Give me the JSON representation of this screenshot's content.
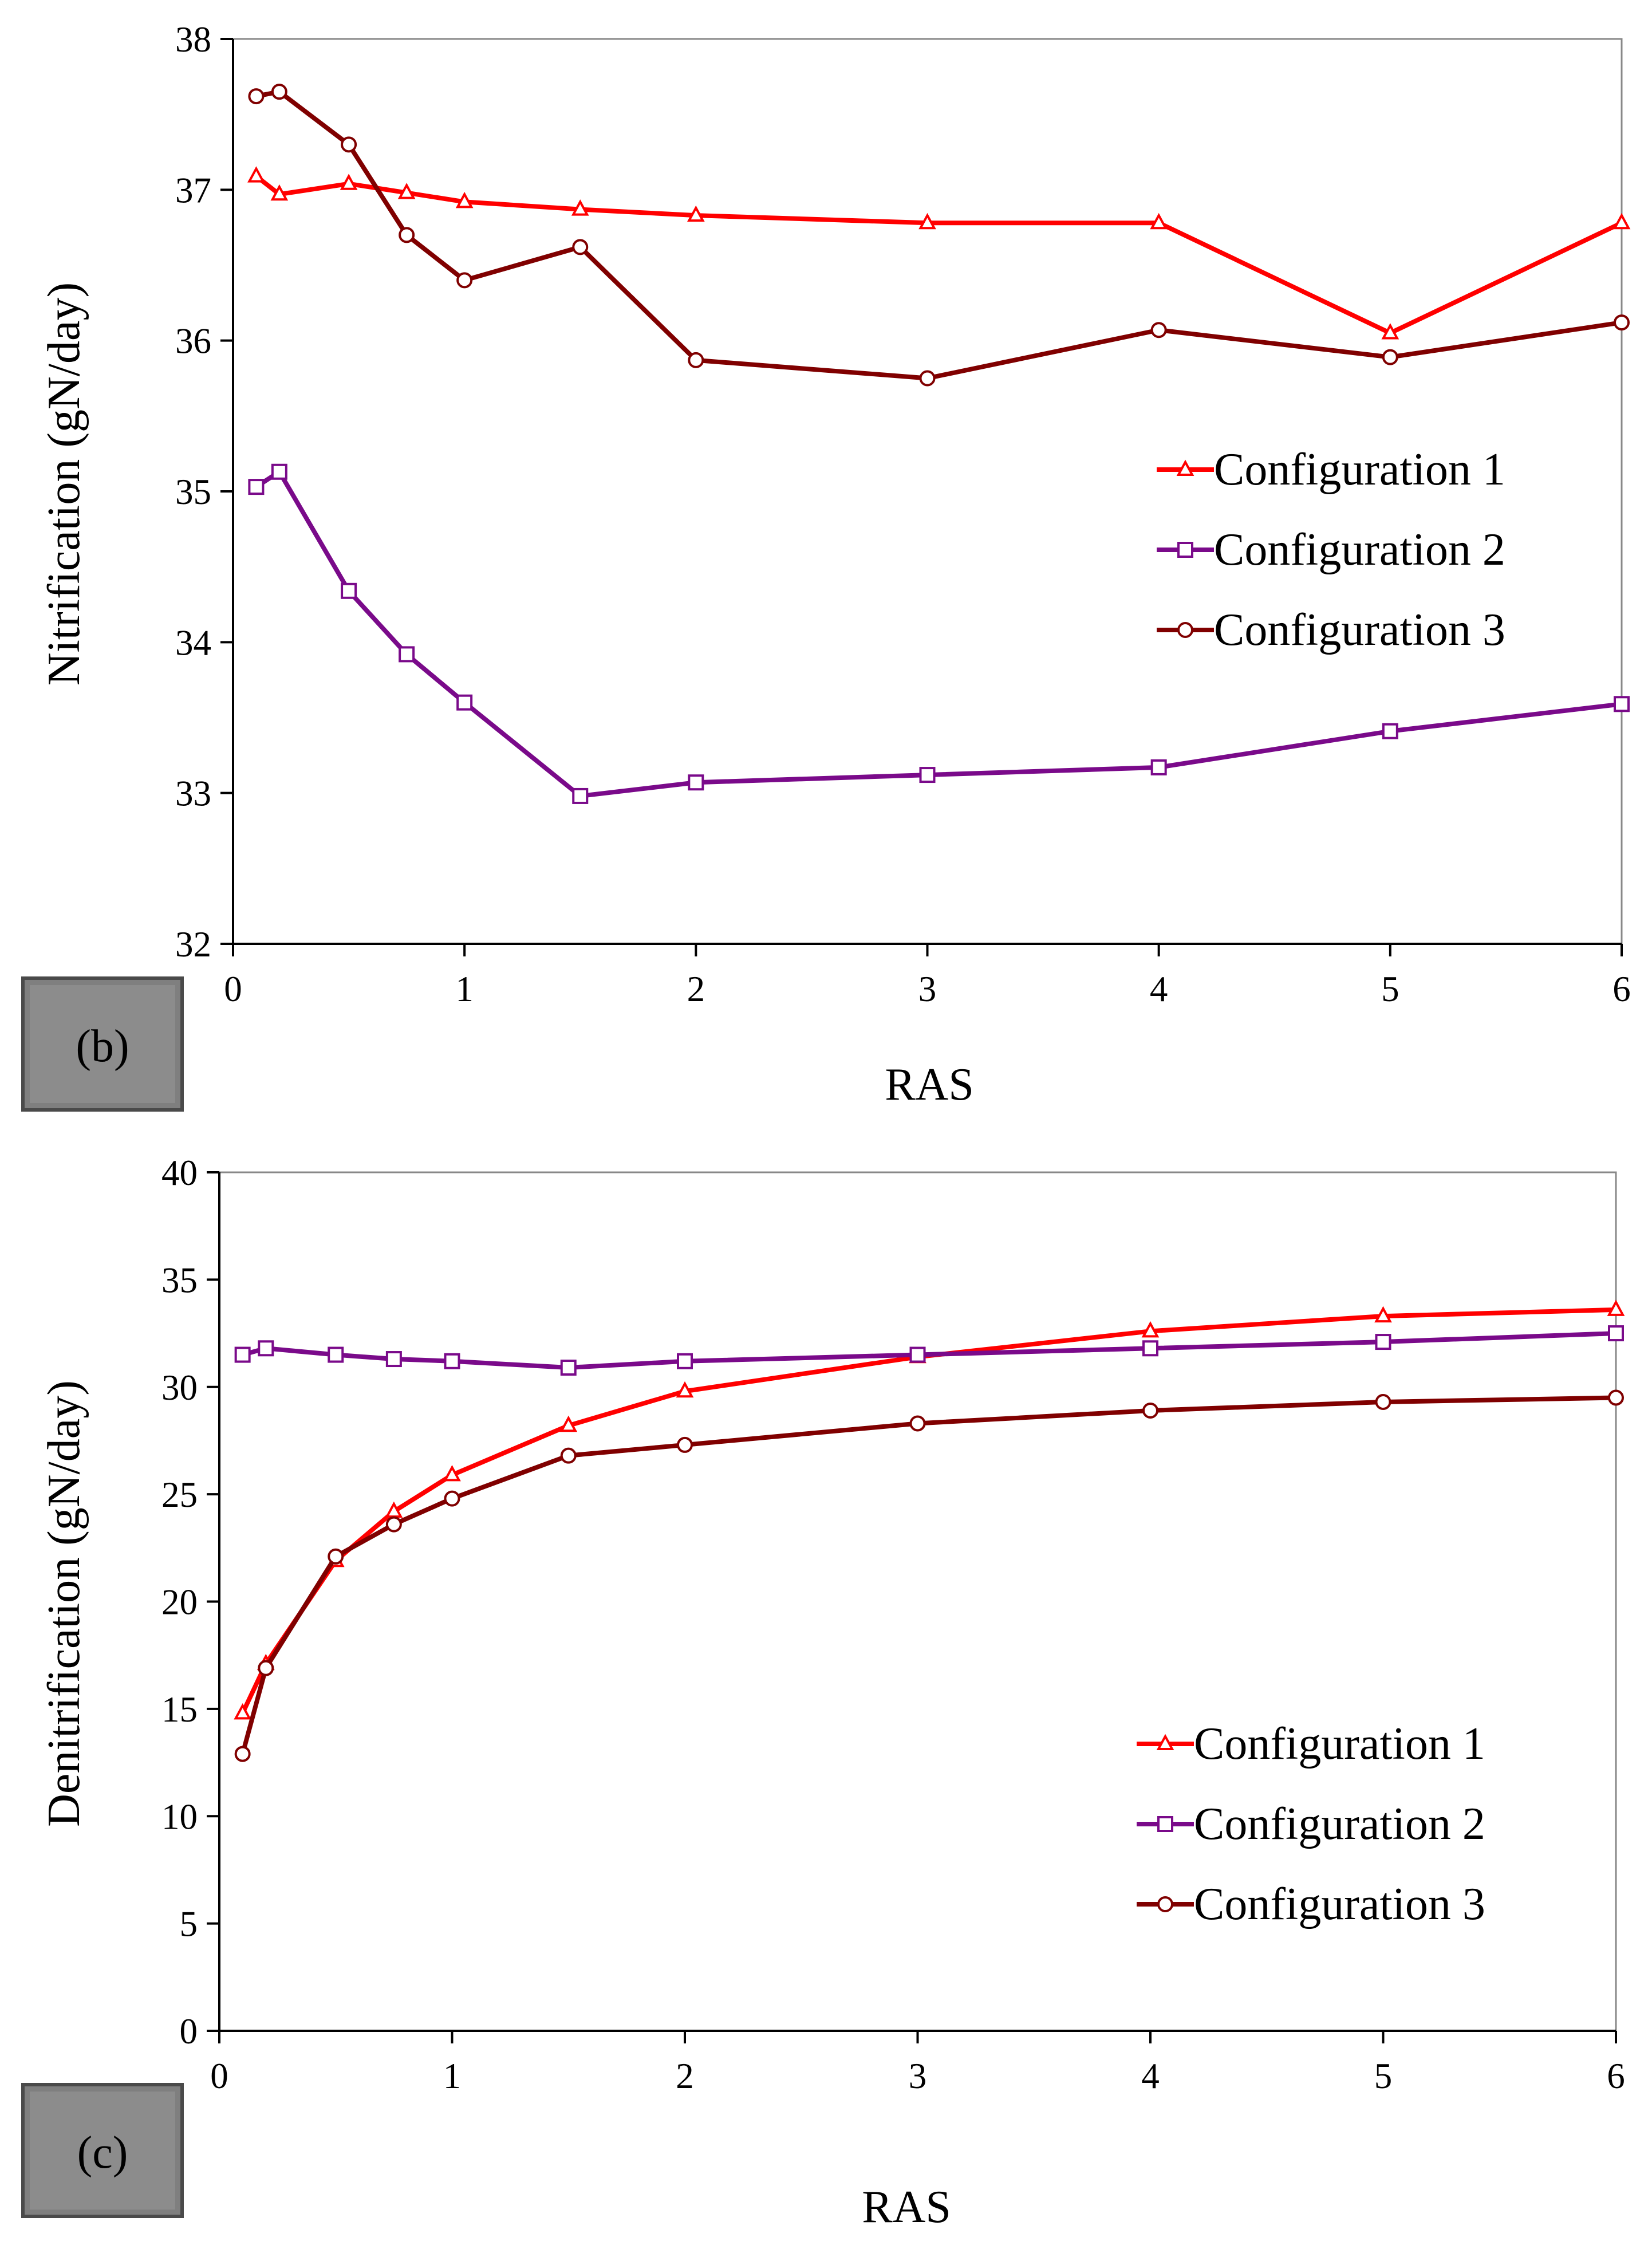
{
  "chart_data": [
    {
      "type": "line",
      "panel_label": "(b)",
      "xlabel": "RAS",
      "ylabel": "Nitrification (gN/day)",
      "xlim": [
        0,
        6
      ],
      "ylim": [
        32,
        38
      ],
      "x_ticks": [
        0,
        1,
        2,
        3,
        4,
        5,
        6
      ],
      "y_ticks": [
        32,
        33,
        34,
        35,
        36,
        37,
        38
      ],
      "grid": false,
      "legend_position": "middle-right",
      "series": [
        {
          "name": "Configuration 1",
          "color": "#ff0000",
          "marker": "triangle",
          "x": [
            0.1,
            0.2,
            0.5,
            0.75,
            1,
            1.5,
            2,
            3,
            4,
            5,
            6
          ],
          "y": [
            37.09,
            36.97,
            37.04,
            36.98,
            36.92,
            36.87,
            36.83,
            36.78,
            36.78,
            36.05,
            36.78
          ]
        },
        {
          "name": "Configuration 2",
          "color": "#7a0a8a",
          "marker": "square",
          "x": [
            0.1,
            0.2,
            0.5,
            0.75,
            1,
            1.5,
            2,
            3,
            4,
            5,
            6
          ],
          "y": [
            35.03,
            35.13,
            34.34,
            33.92,
            33.6,
            32.98,
            33.07,
            33.12,
            33.17,
            33.41,
            33.59
          ]
        },
        {
          "name": "Configuration 3",
          "color": "#800000",
          "marker": "circle",
          "x": [
            0.1,
            0.2,
            0.5,
            0.75,
            1,
            1.5,
            2,
            3,
            4,
            5,
            6
          ],
          "y": [
            37.62,
            37.65,
            37.3,
            36.7,
            36.4,
            36.62,
            35.87,
            35.75,
            36.07,
            35.89,
            36.12
          ]
        }
      ]
    },
    {
      "type": "line",
      "panel_label": "(c)",
      "xlabel": "RAS",
      "ylabel": "Denitrification (gN/day)",
      "xlim": [
        0,
        6
      ],
      "ylim": [
        0,
        40
      ],
      "x_ticks": [
        0,
        1,
        2,
        3,
        4,
        5,
        6
      ],
      "y_ticks": [
        0,
        5,
        10,
        15,
        20,
        25,
        30,
        35,
        40
      ],
      "grid": false,
      "legend_position": "bottom-right",
      "series": [
        {
          "name": "Configuration 1",
          "color": "#ff0000",
          "marker": "triangle",
          "x": [
            0.1,
            0.2,
            0.5,
            0.75,
            1,
            1.5,
            2,
            3,
            4,
            5,
            6
          ],
          "y": [
            14.8,
            17.1,
            21.9,
            24.2,
            25.9,
            28.2,
            29.8,
            31.4,
            32.6,
            33.3,
            33.6
          ]
        },
        {
          "name": "Configuration 2",
          "color": "#7a0a8a",
          "marker": "square",
          "x": [
            0.1,
            0.2,
            0.5,
            0.75,
            1,
            1.5,
            2,
            3,
            4,
            5,
            6
          ],
          "y": [
            31.5,
            31.8,
            31.5,
            31.3,
            31.2,
            30.9,
            31.2,
            31.5,
            31.8,
            32.1,
            32.5
          ]
        },
        {
          "name": "Configuration 3",
          "color": "#800000",
          "marker": "circle",
          "x": [
            0.1,
            0.2,
            0.5,
            0.75,
            1,
            1.5,
            2,
            3,
            4,
            5,
            6
          ],
          "y": [
            12.9,
            16.9,
            22.1,
            23.6,
            24.8,
            26.8,
            27.3,
            28.3,
            28.9,
            29.3,
            29.5
          ]
        }
      ]
    }
  ]
}
